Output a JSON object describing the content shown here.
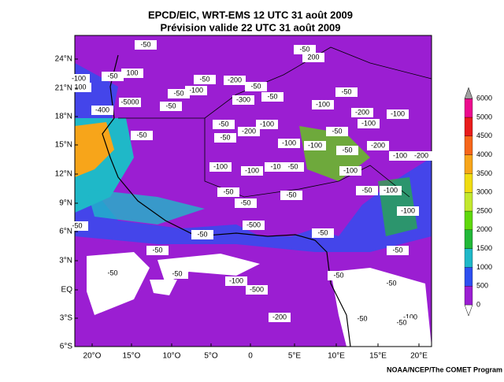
{
  "header": {
    "title": "EPCD/EIC, WRT-EMS 12 UTC 31 août 2009",
    "subtitle": "Prévision valide 22 UTC 31 août 2009"
  },
  "map": {
    "lat_labels": [
      "24°N",
      "21°N",
      "18°N",
      "15°N",
      "12°N",
      "9°N",
      "6°N",
      "3°N",
      "EQ",
      "3°S",
      "6°S"
    ],
    "lon_labels": [
      "20°O",
      "15°O",
      "10°O",
      "5°O",
      "0",
      "5°E",
      "10°E",
      "15°E",
      "20°E"
    ],
    "contour_labels": [
      -50,
      -50,
      200,
      -100,
      -50,
      100,
      -50,
      -200,
      -50,
      -100,
      -50,
      -300,
      -50,
      -100,
      -50,
      -5000,
      -400,
      -50,
      -200,
      -100,
      -50,
      -100,
      -200,
      -50,
      -100,
      -50,
      -50,
      -100,
      -100,
      -200,
      -50,
      -100,
      -100,
      -10,
      -50,
      -100,
      -100,
      -200,
      -50,
      -50,
      -50,
      -100,
      -50,
      -100,
      -50,
      -50,
      -500,
      -50,
      -50,
      -50,
      -50,
      -100,
      -500,
      -50,
      -50,
      -200,
      -50,
      -100,
      -50,
      -50,
      100
    ]
  },
  "colorbar": {
    "levels": [
      0,
      500,
      1000,
      1500,
      2000,
      2500,
      3000,
      3500,
      4000,
      4500,
      5000,
      6000
    ],
    "colors": [
      "#9b1ed2",
      "#2e4ff0",
      "#1fb8c8",
      "#22b838",
      "#5fd80a",
      "#c3e82e",
      "#f0dc10",
      "#f7a51a",
      "#f6661a",
      "#e81c1c",
      "#ec0a8e"
    ]
  },
  "credit": "NOAA/NCEP/The COMET Program"
}
